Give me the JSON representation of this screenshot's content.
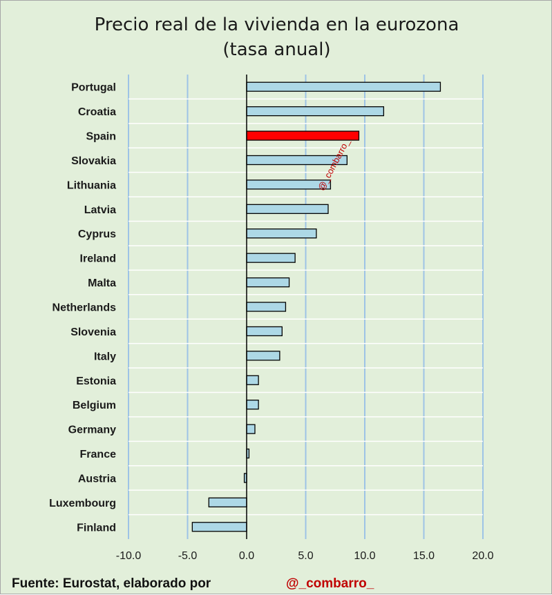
{
  "title_line1": "Precio real de la vivienda en la eurozona",
  "title_line2": "(tasa anual)",
  "source_text": "Fuente: Eurostat, elaborado por",
  "handle": "@_combarro_",
  "watermark": "@_combarro_",
  "colors": {
    "background": "#e2efda",
    "bar": "#add8e6",
    "highlight": "#ff0000",
    "gridline": "#9dc3e6",
    "handle": "#c00000"
  },
  "chart_data": {
    "type": "bar",
    "orientation": "horizontal",
    "title": "Precio real de la vivienda en la eurozona (tasa anual)",
    "xlabel": "",
    "ylabel": "",
    "xlim": [
      -10,
      20
    ],
    "x_ticks": [
      -10,
      -5,
      0,
      5,
      10,
      15,
      20
    ],
    "x_tick_labels": [
      "-10.0",
      "-5.0",
      "0.0",
      "5.0",
      "10.0",
      "15.0",
      "20.0"
    ],
    "grid": true,
    "highlight": "Spain",
    "categories": [
      "Portugal",
      "Croatia",
      "Spain",
      "Slovakia",
      "Lithuania",
      "Latvia",
      "Cyprus",
      "Ireland",
      "Malta",
      "Netherlands",
      "Slovenia",
      "Italy",
      "Estonia",
      "Belgium",
      "Germany",
      "France",
      "Austria",
      "Luxembourg",
      "Finland"
    ],
    "values": [
      16.4,
      11.6,
      9.5,
      8.5,
      7.1,
      6.9,
      5.9,
      4.1,
      3.6,
      3.3,
      3.0,
      2.8,
      1.0,
      1.0,
      0.7,
      0.2,
      -0.2,
      -3.2,
      -4.6
    ]
  }
}
